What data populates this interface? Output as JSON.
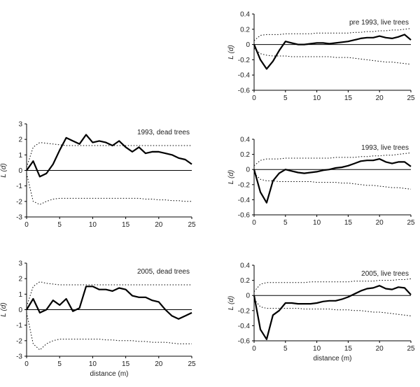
{
  "chart_data": [
    {
      "type": "line",
      "title": "pre 1993, live trees",
      "xlabel": "",
      "ylabel": "L (d)",
      "xlim": [
        0,
        25
      ],
      "ylim": [
        -0.6,
        0.4
      ],
      "x_ticks": [
        0,
        5,
        10,
        15,
        20,
        25
      ],
      "y_ticks": [
        0.4,
        0.2,
        0,
        -0.2,
        -0.4,
        -0.6
      ],
      "y_tick_labels": [
        "0.4",
        "0.2",
        "0",
        "-0.2",
        "-0.4",
        "-0.6"
      ],
      "grid": false,
      "series": [
        {
          "role": "observed",
          "x": [
            0,
            1,
            2,
            3,
            4,
            5,
            6,
            7,
            8,
            9,
            10,
            11,
            12,
            13,
            14,
            15,
            16,
            17,
            18,
            19,
            20,
            21,
            22,
            23,
            24,
            25
          ],
          "y": [
            0.0,
            -0.2,
            -0.32,
            -0.22,
            -0.08,
            0.04,
            0.02,
            0.0,
            0.0,
            0.01,
            0.02,
            0.02,
            0.01,
            0.02,
            0.03,
            0.04,
            0.06,
            0.08,
            0.09,
            0.09,
            0.11,
            0.09,
            0.08,
            0.1,
            0.13,
            0.06
          ]
        },
        {
          "role": "upper_envelope",
          "x": [
            0,
            1,
            2,
            3,
            4,
            5,
            6,
            7,
            8,
            9,
            10,
            11,
            12,
            13,
            14,
            15,
            16,
            17,
            18,
            19,
            20,
            21,
            22,
            23,
            24,
            25
          ],
          "y": [
            0.05,
            0.12,
            0.13,
            0.13,
            0.13,
            0.14,
            0.14,
            0.14,
            0.14,
            0.14,
            0.15,
            0.15,
            0.15,
            0.15,
            0.15,
            0.15,
            0.16,
            0.16,
            0.17,
            0.17,
            0.18,
            0.18,
            0.19,
            0.19,
            0.2,
            0.21
          ]
        },
        {
          "role": "lower_envelope",
          "x": [
            0,
            1,
            2,
            3,
            4,
            5,
            6,
            7,
            8,
            9,
            10,
            11,
            12,
            13,
            14,
            15,
            16,
            17,
            18,
            19,
            20,
            21,
            22,
            23,
            24,
            25
          ],
          "y": [
            -0.05,
            -0.12,
            -0.14,
            -0.15,
            -0.15,
            -0.15,
            -0.16,
            -0.16,
            -0.16,
            -0.16,
            -0.16,
            -0.16,
            -0.16,
            -0.17,
            -0.17,
            -0.17,
            -0.18,
            -0.19,
            -0.2,
            -0.21,
            -0.22,
            -0.23,
            -0.23,
            -0.24,
            -0.25,
            -0.26
          ]
        }
      ]
    },
    {
      "type": "line",
      "title": "1993, dead trees",
      "xlabel": "",
      "ylabel": "L (d)",
      "xlim": [
        0,
        25
      ],
      "ylim": [
        -3,
        3
      ],
      "x_ticks": [
        0,
        5,
        10,
        15,
        20,
        25
      ],
      "y_ticks": [
        3,
        2,
        1,
        0,
        -1,
        -2,
        -3
      ],
      "y_tick_labels": [
        "3",
        "2",
        "1",
        "0",
        "-1",
        "-2",
        "-3"
      ],
      "grid": false,
      "series": [
        {
          "role": "observed",
          "x": [
            0,
            1,
            2,
            3,
            4,
            5,
            6,
            7,
            8,
            9,
            10,
            11,
            12,
            13,
            14,
            15,
            16,
            17,
            18,
            19,
            20,
            21,
            22,
            23,
            24,
            25
          ],
          "y": [
            0.0,
            0.6,
            -0.4,
            -0.2,
            0.4,
            1.3,
            2.1,
            1.9,
            1.7,
            2.3,
            1.8,
            1.9,
            1.8,
            1.6,
            1.9,
            1.5,
            1.2,
            1.5,
            1.1,
            1.2,
            1.2,
            1.1,
            1.0,
            0.8,
            0.7,
            0.4
          ]
        },
        {
          "role": "upper_envelope",
          "x": [
            0,
            1,
            2,
            3,
            4,
            5,
            6,
            7,
            8,
            9,
            10,
            11,
            12,
            13,
            14,
            15,
            16,
            17,
            18,
            19,
            20,
            21,
            22,
            23,
            24,
            25
          ],
          "y": [
            0.2,
            1.5,
            1.8,
            1.75,
            1.7,
            1.65,
            1.6,
            1.6,
            1.6,
            1.6,
            1.6,
            1.6,
            1.6,
            1.6,
            1.6,
            1.6,
            1.6,
            1.6,
            1.6,
            1.6,
            1.6,
            1.6,
            1.6,
            1.6,
            1.6,
            1.6
          ]
        },
        {
          "role": "lower_envelope",
          "x": [
            0,
            1,
            2,
            3,
            4,
            5,
            6,
            7,
            8,
            9,
            10,
            11,
            12,
            13,
            14,
            15,
            16,
            17,
            18,
            19,
            20,
            21,
            22,
            23,
            24,
            25
          ],
          "y": [
            -0.2,
            -2.0,
            -2.2,
            -2.0,
            -1.85,
            -1.8,
            -1.8,
            -1.8,
            -1.8,
            -1.8,
            -1.8,
            -1.8,
            -1.8,
            -1.8,
            -1.8,
            -1.8,
            -1.8,
            -1.8,
            -1.85,
            -1.85,
            -1.9,
            -1.9,
            -1.95,
            -1.95,
            -2.0,
            -2.0
          ]
        }
      ]
    },
    {
      "type": "line",
      "title": "1993, live trees",
      "xlabel": "",
      "ylabel": "L (d)",
      "xlim": [
        0,
        25
      ],
      "ylim": [
        -0.6,
        0.4
      ],
      "x_ticks": [
        0,
        5,
        10,
        15,
        20,
        25
      ],
      "y_ticks": [
        0.4,
        0.2,
        0,
        -0.2,
        -0.4,
        -0.6
      ],
      "y_tick_labels": [
        "0.4",
        "0.2",
        "0",
        "-0.2",
        "-0.4",
        "-0.6"
      ],
      "grid": false,
      "series": [
        {
          "role": "observed",
          "x": [
            0,
            1,
            2,
            3,
            4,
            5,
            6,
            7,
            8,
            9,
            10,
            11,
            12,
            13,
            14,
            15,
            16,
            17,
            18,
            19,
            20,
            21,
            22,
            23,
            24,
            25
          ],
          "y": [
            0.0,
            -0.3,
            -0.44,
            -0.15,
            -0.05,
            0.0,
            -0.02,
            -0.04,
            -0.05,
            -0.04,
            -0.03,
            -0.01,
            0.0,
            0.02,
            0.03,
            0.05,
            0.08,
            0.11,
            0.12,
            0.12,
            0.14,
            0.1,
            0.08,
            0.1,
            0.1,
            0.04
          ]
        },
        {
          "role": "upper_envelope",
          "x": [
            0,
            1,
            2,
            3,
            4,
            5,
            6,
            7,
            8,
            9,
            10,
            11,
            12,
            13,
            14,
            15,
            16,
            17,
            18,
            19,
            20,
            21,
            22,
            23,
            24,
            25
          ],
          "y": [
            0.05,
            0.12,
            0.14,
            0.14,
            0.14,
            0.15,
            0.15,
            0.15,
            0.15,
            0.15,
            0.15,
            0.15,
            0.15,
            0.16,
            0.16,
            0.16,
            0.16,
            0.17,
            0.17,
            0.18,
            0.18,
            0.19,
            0.19,
            0.2,
            0.21,
            0.22
          ]
        },
        {
          "role": "lower_envelope",
          "x": [
            0,
            1,
            2,
            3,
            4,
            5,
            6,
            7,
            8,
            9,
            10,
            11,
            12,
            13,
            14,
            15,
            16,
            17,
            18,
            19,
            20,
            21,
            22,
            23,
            24,
            25
          ],
          "y": [
            -0.05,
            -0.13,
            -0.15,
            -0.15,
            -0.16,
            -0.16,
            -0.16,
            -0.16,
            -0.16,
            -0.16,
            -0.17,
            -0.17,
            -0.17,
            -0.17,
            -0.18,
            -0.18,
            -0.19,
            -0.2,
            -0.21,
            -0.21,
            -0.22,
            -0.23,
            -0.24,
            -0.24,
            -0.25,
            -0.26
          ]
        }
      ]
    },
    {
      "type": "line",
      "title": "2005, dead trees",
      "xlabel": "distance (m)",
      "ylabel": "L (d)",
      "xlim": [
        0,
        25
      ],
      "ylim": [
        -3,
        3
      ],
      "x_ticks": [
        0,
        5,
        10,
        15,
        20,
        25
      ],
      "y_ticks": [
        3,
        2,
        1,
        0,
        -1,
        -2,
        -3
      ],
      "y_tick_labels": [
        "3",
        "2",
        "1",
        "0",
        "-1",
        "-2",
        "-3"
      ],
      "grid": false,
      "series": [
        {
          "role": "observed",
          "x": [
            0,
            1,
            2,
            3,
            4,
            5,
            6,
            7,
            8,
            9,
            10,
            11,
            12,
            13,
            14,
            15,
            16,
            17,
            18,
            19,
            20,
            21,
            22,
            23,
            24,
            25
          ],
          "y": [
            0.0,
            0.7,
            -0.2,
            0.0,
            0.6,
            0.3,
            0.7,
            -0.1,
            0.1,
            1.5,
            1.5,
            1.3,
            1.3,
            1.2,
            1.4,
            1.3,
            0.9,
            0.8,
            0.8,
            0.6,
            0.5,
            0.0,
            -0.4,
            -0.6,
            -0.4,
            -0.2
          ]
        },
        {
          "role": "upper_envelope",
          "x": [
            0,
            1,
            2,
            3,
            4,
            5,
            6,
            7,
            8,
            9,
            10,
            11,
            12,
            13,
            14,
            15,
            16,
            17,
            18,
            19,
            20,
            21,
            22,
            23,
            24,
            25
          ],
          "y": [
            0.2,
            1.5,
            1.8,
            1.7,
            1.65,
            1.6,
            1.6,
            1.6,
            1.6,
            1.6,
            1.6,
            1.6,
            1.6,
            1.6,
            1.6,
            1.6,
            1.6,
            1.6,
            1.6,
            1.6,
            1.6,
            1.6,
            1.6,
            1.6,
            1.6,
            1.6
          ]
        },
        {
          "role": "lower_envelope",
          "x": [
            0,
            1,
            2,
            3,
            4,
            5,
            6,
            7,
            8,
            9,
            10,
            11,
            12,
            13,
            14,
            15,
            16,
            17,
            18,
            19,
            20,
            21,
            22,
            23,
            24,
            25
          ],
          "y": [
            -0.2,
            -2.2,
            -2.6,
            -2.2,
            -2.0,
            -1.9,
            -1.9,
            -1.9,
            -1.9,
            -1.9,
            -1.9,
            -1.9,
            -1.95,
            -1.95,
            -2.0,
            -2.0,
            -2.0,
            -2.05,
            -2.05,
            -2.1,
            -2.1,
            -2.1,
            -2.15,
            -2.2,
            -2.2,
            -2.2
          ]
        }
      ]
    },
    {
      "type": "line",
      "title": "2005, live trees",
      "xlabel": "distance (m)",
      "ylabel": "L (d)",
      "xlim": [
        0,
        25
      ],
      "ylim": [
        -0.6,
        0.4
      ],
      "x_ticks": [
        0,
        5,
        10,
        15,
        20,
        25
      ],
      "y_ticks": [
        0.4,
        0.2,
        0,
        -0.2,
        -0.4,
        -0.6
      ],
      "y_tick_labels": [
        "0.4",
        "0.2",
        "0",
        "-0.2",
        "-0.4",
        "-0.6"
      ],
      "grid": false,
      "series": [
        {
          "role": "observed",
          "x": [
            0,
            1,
            2,
            3,
            4,
            5,
            6,
            7,
            8,
            9,
            10,
            11,
            12,
            13,
            14,
            15,
            16,
            17,
            18,
            19,
            20,
            21,
            22,
            23,
            24,
            25
          ],
          "y": [
            0.0,
            -0.45,
            -0.58,
            -0.26,
            -0.2,
            -0.1,
            -0.1,
            -0.11,
            -0.11,
            -0.11,
            -0.1,
            -0.08,
            -0.07,
            -0.07,
            -0.05,
            -0.02,
            0.02,
            0.06,
            0.09,
            0.1,
            0.13,
            0.09,
            0.08,
            0.11,
            0.1,
            0.01
          ]
        },
        {
          "role": "upper_envelope",
          "x": [
            0,
            1,
            2,
            3,
            4,
            5,
            6,
            7,
            8,
            9,
            10,
            11,
            12,
            13,
            14,
            15,
            16,
            17,
            18,
            19,
            20,
            21,
            22,
            23,
            24,
            25
          ],
          "y": [
            0.05,
            0.15,
            0.17,
            0.17,
            0.17,
            0.17,
            0.17,
            0.17,
            0.17,
            0.18,
            0.18,
            0.18,
            0.18,
            0.18,
            0.18,
            0.18,
            0.19,
            0.19,
            0.19,
            0.19,
            0.2,
            0.2,
            0.2,
            0.21,
            0.21,
            0.22
          ]
        },
        {
          "role": "lower_envelope",
          "x": [
            0,
            1,
            2,
            3,
            4,
            5,
            6,
            7,
            8,
            9,
            10,
            11,
            12,
            13,
            14,
            15,
            16,
            17,
            18,
            19,
            20,
            21,
            22,
            23,
            24,
            25
          ],
          "y": [
            -0.05,
            -0.15,
            -0.17,
            -0.17,
            -0.17,
            -0.17,
            -0.17,
            -0.17,
            -0.18,
            -0.18,
            -0.18,
            -0.18,
            -0.18,
            -0.19,
            -0.19,
            -0.19,
            -0.2,
            -0.2,
            -0.21,
            -0.22,
            -0.22,
            -0.23,
            -0.24,
            -0.25,
            -0.26,
            -0.27
          ]
        }
      ]
    }
  ]
}
